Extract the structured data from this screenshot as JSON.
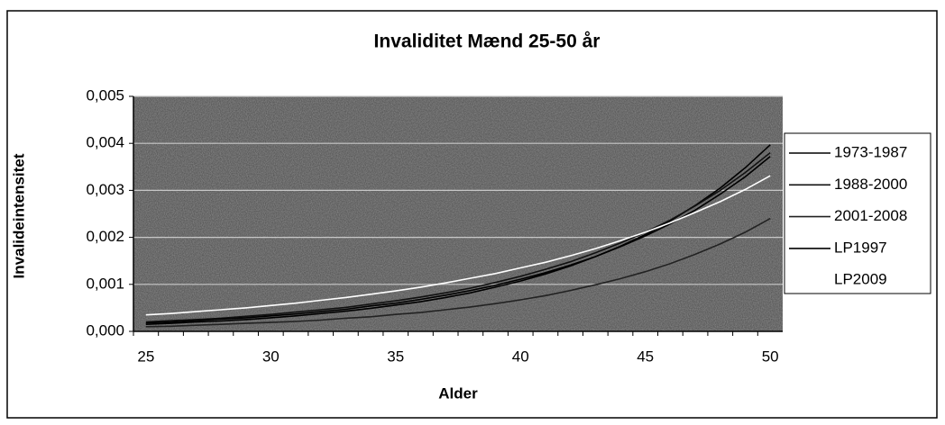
{
  "chart_data": {
    "type": "line",
    "title": "Invaliditet Mænd 25-50 år",
    "x_label": "Alder",
    "y_label": "Invalideintensitet",
    "categories": [
      25,
      null,
      null,
      null,
      null,
      30,
      null,
      null,
      null,
      null,
      35,
      null,
      null,
      null,
      null,
      40,
      null,
      null,
      null,
      null,
      45,
      null,
      null,
      null,
      null,
      50
    ],
    "ylim": [
      0,
      0.005
    ],
    "yticks": [
      {
        "value": 0,
        "label": "0,000"
      },
      {
        "value": 0.001,
        "label": "0,001"
      },
      {
        "value": 0.002,
        "label": "0,002"
      },
      {
        "value": 0.003,
        "label": "0,003"
      },
      {
        "value": 0.004,
        "label": "0,004"
      },
      {
        "value": 0.005,
        "label": "0,005"
      }
    ],
    "grid": true,
    "legend": "right",
    "series": [
      {
        "name": "1973-1987",
        "color": "#000000",
        "values": [
          0.00015,
          0.00017,
          0.0002,
          0.00022,
          0.00025,
          0.00029,
          0.00033,
          0.00038,
          0.00043,
          0.00049,
          0.00056,
          0.00063,
          0.00072,
          0.00082,
          0.00094,
          0.00107,
          0.00122,
          0.00139,
          0.00159,
          0.00181,
          0.00206,
          0.00235,
          0.00268,
          0.00305,
          0.00348,
          0.00397
        ]
      },
      {
        "name": "1988-2000",
        "color": "#111111",
        "values": [
          0.0002,
          0.00023,
          0.00025,
          0.00028,
          0.00032,
          0.00036,
          0.00041,
          0.00046,
          0.00051,
          0.00058,
          0.00065,
          0.00073,
          0.00082,
          0.00092,
          0.00104,
          0.00117,
          0.00132,
          0.00148,
          0.00167,
          0.00188,
          0.00211,
          0.00237,
          0.00267,
          0.003,
          0.00338,
          0.0038
        ]
      },
      {
        "name": "2001-2008",
        "color": "#222222",
        "values": [
          0.0001,
          0.00011,
          0.00013,
          0.00015,
          0.00017,
          0.00019,
          0.00021,
          0.00024,
          0.00028,
          0.00031,
          0.00036,
          0.0004,
          0.00046,
          0.00052,
          0.00059,
          0.00067,
          0.00076,
          0.00087,
          0.00099,
          0.00112,
          0.00127,
          0.00144,
          0.00164,
          0.00186,
          0.00211,
          0.0024
        ]
      },
      {
        "name": "LP1997",
        "color": "#000000",
        "values": [
          0.00018,
          0.0002,
          0.00023,
          0.00026,
          0.00029,
          0.00033,
          0.00037,
          0.00042,
          0.00047,
          0.00054,
          0.0006,
          0.00068,
          0.00077,
          0.00087,
          0.00098,
          0.00111,
          0.00125,
          0.00141,
          0.00159,
          0.0018,
          0.00203,
          0.00229,
          0.00258,
          0.00292,
          0.00329,
          0.00372
        ]
      },
      {
        "name": "LP2009",
        "color": "#ffffff",
        "values": [
          0.00035,
          0.00038,
          0.00042,
          0.00046,
          0.0005,
          0.00055,
          0.0006,
          0.00066,
          0.00072,
          0.00079,
          0.00086,
          0.00094,
          0.00103,
          0.00113,
          0.00123,
          0.00135,
          0.00147,
          0.00161,
          0.00176,
          0.00193,
          0.00211,
          0.00231,
          0.00253,
          0.00276,
          0.00302,
          0.00331
        ]
      }
    ]
  }
}
